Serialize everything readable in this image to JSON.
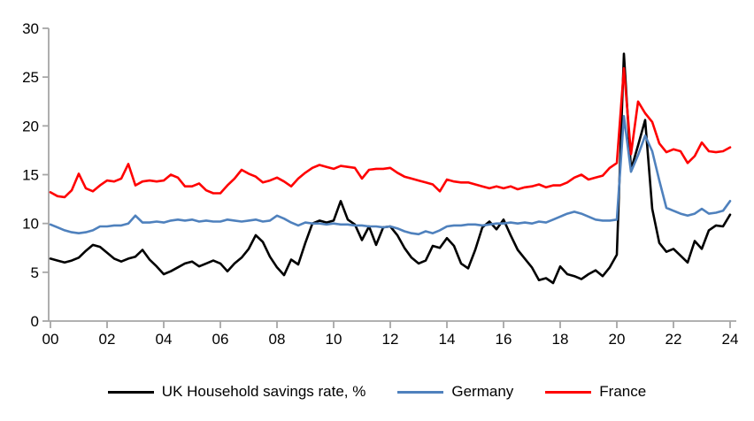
{
  "chart_data": {
    "type": "line",
    "title": "",
    "xlabel": "",
    "ylabel": "",
    "ylim": [
      0,
      30
    ],
    "y_ticks": [
      0,
      5,
      10,
      15,
      20,
      25,
      30
    ],
    "x_tick_labels": [
      "00",
      "02",
      "04",
      "06",
      "08",
      "10",
      "12",
      "14",
      "16",
      "18",
      "20",
      "22",
      "24"
    ],
    "x_unit": "quarterly, 2000Q1 - 2024Q1",
    "grid": "off",
    "legend_position": "bottom",
    "axis_color": "#A6A6A6",
    "label_color": "#000000",
    "background_color": "#FFFFFF",
    "series": [
      {
        "name": "UK Household savings rate, %",
        "color": "#000000",
        "values": [
          6.4,
          6.2,
          6.0,
          6.2,
          6.5,
          7.2,
          7.8,
          7.6,
          7.0,
          6.4,
          6.1,
          6.4,
          6.6,
          7.3,
          6.3,
          5.6,
          4.8,
          5.1,
          5.5,
          5.9,
          6.1,
          5.6,
          5.9,
          6.2,
          5.9,
          5.1,
          5.9,
          6.5,
          7.4,
          8.8,
          8.1,
          6.6,
          5.5,
          4.7,
          6.3,
          5.8,
          8.0,
          10.0,
          10.3,
          10.1,
          10.3,
          12.3,
          10.4,
          9.9,
          8.3,
          9.7,
          7.8,
          9.6,
          9.7,
          8.8,
          7.5,
          6.5,
          5.9,
          6.2,
          7.7,
          7.5,
          8.5,
          7.7,
          5.9,
          5.4,
          7.3,
          9.6,
          10.2,
          9.4,
          10.4,
          8.8,
          7.3,
          6.4,
          5.5,
          4.2,
          4.4,
          3.9,
          5.6,
          4.8,
          4.6,
          4.3,
          4.8,
          5.2,
          4.6,
          5.5,
          6.8,
          27.4,
          15.5,
          18.0,
          20.6,
          11.5,
          8.0,
          7.1,
          7.4,
          6.7,
          6.0,
          8.2,
          7.4,
          9.3,
          9.8,
          9.7,
          10.9
        ]
      },
      {
        "name": "Germany",
        "color": "#4F81BD",
        "values": [
          9.9,
          9.6,
          9.3,
          9.1,
          9.0,
          9.1,
          9.3,
          9.7,
          9.7,
          9.8,
          9.8,
          10.0,
          10.8,
          10.1,
          10.1,
          10.2,
          10.1,
          10.3,
          10.4,
          10.3,
          10.4,
          10.2,
          10.3,
          10.2,
          10.2,
          10.4,
          10.3,
          10.2,
          10.3,
          10.4,
          10.2,
          10.3,
          10.8,
          10.5,
          10.1,
          9.8,
          10.1,
          10.0,
          10.0,
          9.9,
          10.0,
          9.9,
          9.9,
          9.8,
          9.8,
          9.7,
          9.7,
          9.6,
          9.7,
          9.5,
          9.2,
          9.0,
          8.9,
          9.2,
          9.0,
          9.3,
          9.7,
          9.8,
          9.8,
          9.9,
          9.9,
          9.8,
          9.9,
          10.0,
          10.0,
          10.1,
          10.0,
          10.1,
          10.0,
          10.2,
          10.1,
          10.4,
          10.7,
          11.0,
          11.2,
          11.0,
          10.7,
          10.4,
          10.3,
          10.3,
          10.4,
          21.0,
          15.3,
          17.0,
          19.0,
          17.4,
          14.4,
          11.6,
          11.3,
          11.0,
          10.8,
          11.0,
          11.5,
          11.0,
          11.1,
          11.3,
          12.3
        ]
      },
      {
        "name": "France",
        "color": "#FF0000",
        "values": [
          13.2,
          12.8,
          12.7,
          13.4,
          15.1,
          13.6,
          13.3,
          13.9,
          14.4,
          14.3,
          14.6,
          16.1,
          13.9,
          14.3,
          14.4,
          14.3,
          14.4,
          15.0,
          14.7,
          13.8,
          13.8,
          14.1,
          13.4,
          13.1,
          13.1,
          13.9,
          14.6,
          15.5,
          15.1,
          14.8,
          14.2,
          14.4,
          14.7,
          14.3,
          13.8,
          14.6,
          15.2,
          15.7,
          16.0,
          15.8,
          15.6,
          15.9,
          15.8,
          15.7,
          14.6,
          15.5,
          15.6,
          15.6,
          15.7,
          15.2,
          14.8,
          14.6,
          14.4,
          14.2,
          14.0,
          13.3,
          14.5,
          14.3,
          14.2,
          14.2,
          14.0,
          13.8,
          13.6,
          13.8,
          13.6,
          13.8,
          13.5,
          13.7,
          13.8,
          14.0,
          13.7,
          13.9,
          13.9,
          14.2,
          14.7,
          15.0,
          14.5,
          14.7,
          14.9,
          15.7,
          16.2,
          25.9,
          17.1,
          22.5,
          21.3,
          20.4,
          18.2,
          17.3,
          17.6,
          17.4,
          16.2,
          16.9,
          18.3,
          17.4,
          17.3,
          17.4,
          17.8
        ]
      }
    ]
  }
}
